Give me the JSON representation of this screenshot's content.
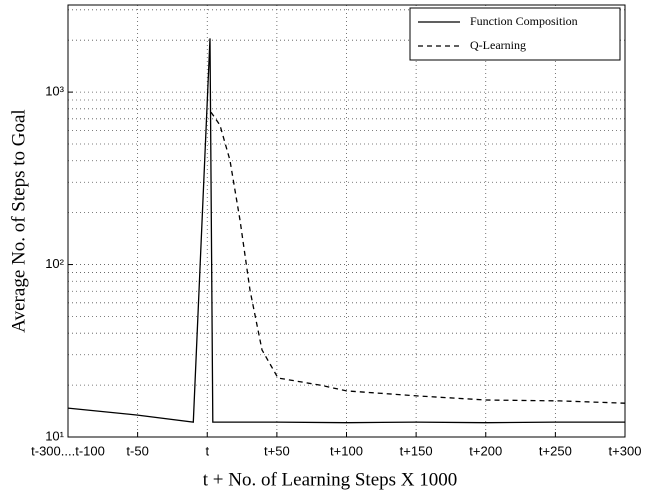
{
  "chart_data": {
    "type": "line",
    "x_label": "t + No. of Learning Steps  X 1000",
    "y_label": "Average No. of  Steps to Goal",
    "xlim": [
      -100,
      300
    ],
    "xticks": [
      {
        "value": -100,
        "label": "t-300....t-100"
      },
      {
        "value": -50,
        "label": "t-50"
      },
      {
        "value": 0,
        "label": "t"
      },
      {
        "value": 50,
        "label": "t+50"
      },
      {
        "value": 100,
        "label": "t+100"
      },
      {
        "value": 150,
        "label": "t+150"
      },
      {
        "value": 200,
        "label": "t+200"
      },
      {
        "value": 250,
        "label": "t+250"
      },
      {
        "value": 300,
        "label": "t+300"
      }
    ],
    "ylim": [
      10,
      3200
    ],
    "y_log": true,
    "yticks": [
      {
        "value": 10,
        "label": "10¹"
      },
      {
        "value": 100,
        "label": "10²"
      },
      {
        "value": 1000,
        "label": "10³"
      }
    ],
    "y_minor_grid": [
      20,
      30,
      40,
      50,
      60,
      70,
      80,
      90,
      200,
      300,
      400,
      500,
      600,
      700,
      800,
      900,
      2000,
      3000
    ],
    "grid": true,
    "legend": "upper right",
    "series": [
      {
        "name": "Function Composition",
        "color": "#000000",
        "dash": "none",
        "x": [
          -100,
          -50,
          -10,
          2,
          4,
          50,
          100,
          150,
          200,
          250,
          300
        ],
        "values": [
          14.7,
          13.4,
          12.2,
          2050,
          12.2,
          12.2,
          12.1,
          12.2,
          12.1,
          12.2,
          12.2
        ]
      },
      {
        "name": "Q-Learning",
        "color": "#000000",
        "dash": "5,4",
        "x": [
          2.7,
          9.1,
          16.3,
          23.5,
          30.7,
          39.3,
          50.8,
          81,
          100,
          152,
          200,
          253,
          300
        ],
        "values": [
          765,
          645,
          404,
          181,
          71,
          32,
          22,
          20,
          18.5,
          17.3,
          16.4,
          16.2,
          15.7
        ]
      }
    ]
  }
}
